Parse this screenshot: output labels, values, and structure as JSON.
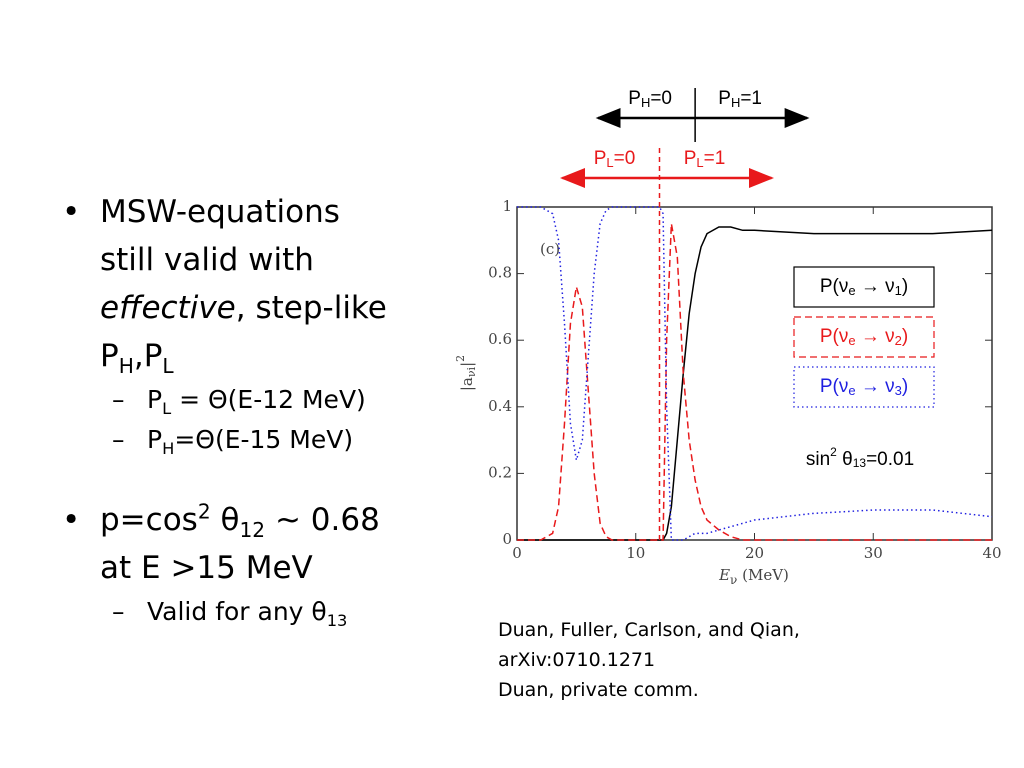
{
  "bullets": [
    {
      "parts": [
        "MSW-equations still valid with ",
        "effective",
        ", step-like P",
        "H",
        ",P",
        "L"
      ],
      "sub": [
        [
          "P",
          "L",
          " = Θ(E-12 MeV)"
        ],
        [
          "P",
          "H",
          "=Θ(E-15 MeV)"
        ]
      ]
    },
    {
      "parts": [
        "p=cos",
        "2",
        " θ",
        "12",
        " ~ 0.68 at E >15 MeV"
      ],
      "sub": [
        [
          "Valid for any θ",
          "13"
        ]
      ]
    }
  ],
  "citation": [
    "Duan, Fuller, Carlson, and Qian,",
    "arXiv:0710.1271",
    "Duan, private comm."
  ],
  "chart_data": {
    "type": "line",
    "panel_label": "(c)",
    "xlabel": [
      "E",
      "ν",
      " (MeV)"
    ],
    "ylabel": [
      "|a",
      "νi",
      "|",
      "2"
    ],
    "xlim": [
      0,
      40
    ],
    "xticks": [
      0,
      10,
      20,
      30,
      40
    ],
    "ylim": [
      0,
      1
    ],
    "yticks": [
      0,
      0.2,
      0.4,
      0.6,
      0.8,
      1
    ],
    "x": [
      0,
      2,
      3,
      3.5,
      4,
      4.5,
      5,
      5.5,
      6,
      6.5,
      7,
      7.5,
      8,
      10,
      12,
      12.3,
      12.6,
      13,
      13.5,
      14,
      14.5,
      15,
      15.5,
      16,
      17,
      18,
      19,
      20,
      25,
      30,
      35,
      40
    ],
    "series": [
      {
        "name": [
          "P(ν",
          "e",
          " → ν",
          "1",
          ")"
        ],
        "color": "#000000",
        "dash": "solid",
        "values": [
          0,
          0,
          0,
          0,
          0,
          0,
          0,
          0,
          0,
          0,
          0,
          0,
          0,
          0,
          0,
          0,
          0.02,
          0.1,
          0.3,
          0.5,
          0.68,
          0.8,
          0.88,
          0.92,
          0.94,
          0.94,
          0.93,
          0.93,
          0.92,
          0.92,
          0.92,
          0.93
        ]
      },
      {
        "name": [
          "P(ν",
          "e",
          " → ν",
          "2",
          ")"
        ],
        "color": "#e8191b",
        "dash": "dashed",
        "values": [
          0,
          0,
          0.02,
          0.1,
          0.35,
          0.65,
          0.76,
          0.7,
          0.45,
          0.2,
          0.05,
          0.01,
          0,
          0,
          0,
          0,
          0.6,
          0.95,
          0.85,
          0.5,
          0.3,
          0.18,
          0.1,
          0.06,
          0.03,
          0.01,
          0,
          0,
          0,
          0,
          0,
          0
        ]
      },
      {
        "name": [
          "P(ν",
          "e",
          " → ν",
          "3",
          ")"
        ],
        "color": "#1f1fe0",
        "dash": "dotted",
        "values": [
          1,
          1,
          0.98,
          0.9,
          0.65,
          0.35,
          0.24,
          0.3,
          0.55,
          0.8,
          0.95,
          0.99,
          1,
          1,
          1,
          0.98,
          0.4,
          0,
          0,
          0,
          0.01,
          0.02,
          0.02,
          0.02,
          0.03,
          0.04,
          0.05,
          0.06,
          0.08,
          0.09,
          0.09,
          0.07
        ]
      }
    ],
    "annotation": [
      "sin",
      "2",
      " θ",
      "13",
      "=0.01"
    ],
    "steps": [
      {
        "x": 15,
        "color": "#000000",
        "left": [
          "P",
          "H",
          "=0"
        ],
        "right": [
          "P",
          "H",
          "=1"
        ]
      },
      {
        "x": 12,
        "color": "#e8191b",
        "left": [
          "P",
          "L",
          "=0"
        ],
        "right": [
          "P",
          "L",
          "=1"
        ]
      }
    ]
  }
}
